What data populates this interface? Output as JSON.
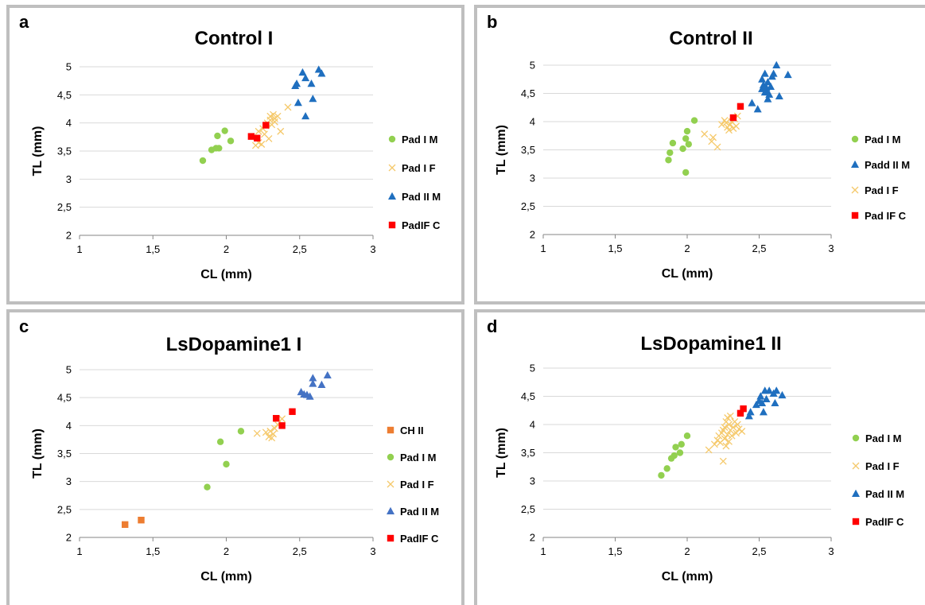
{
  "chart_data": [
    {
      "type": "scatter",
      "panel_label": "a",
      "title": "Control I",
      "xlabel": "CL (mm)",
      "ylabel": "TL (mm)",
      "xlim": [
        1,
        3
      ],
      "ylim": [
        2,
        5
      ],
      "xticks": [
        "1",
        "1,5",
        "2",
        "2,5",
        "3"
      ],
      "yticks": [
        "2",
        "2,5",
        "3",
        "3,5",
        "4",
        "4,5",
        "5"
      ],
      "grid": "horizontal",
      "legend": "right",
      "series": [
        {
          "name": "Pad I M",
          "marker": "circle",
          "color": "#92d050",
          "points": [
            [
              1.84,
              3.33
            ],
            [
              1.9,
              3.52
            ],
            [
              1.93,
              3.55
            ],
            [
              1.95,
              3.55
            ],
            [
              1.94,
              3.77
            ],
            [
              1.99,
              3.86
            ],
            [
              2.03,
              3.68
            ]
          ]
        },
        {
          "name": "Pad I F",
          "marker": "x",
          "color": "#f5c96b",
          "points": [
            [
              2.2,
              3.6
            ],
            [
              2.22,
              3.65
            ],
            [
              2.24,
              3.62
            ],
            [
              2.22,
              3.85
            ],
            [
              2.25,
              3.9
            ],
            [
              2.27,
              3.95
            ],
            [
              2.28,
              4.0
            ],
            [
              2.3,
              4.05
            ],
            [
              2.3,
              4.12
            ],
            [
              2.32,
              4.15
            ],
            [
              2.33,
              4.08
            ],
            [
              2.35,
              4.12
            ],
            [
              2.33,
              4.02
            ],
            [
              2.29,
              3.72
            ],
            [
              2.37,
              3.85
            ],
            [
              2.42,
              4.28
            ],
            [
              2.26,
              3.8
            ],
            [
              2.31,
              3.97
            ]
          ]
        },
        {
          "name": "Pad II M",
          "marker": "triangle",
          "color": "#1f6fbf",
          "points": [
            [
              2.47,
              4.66
            ],
            [
              2.48,
              4.7
            ],
            [
              2.49,
              4.36
            ],
            [
              2.52,
              4.9
            ],
            [
              2.54,
              4.8
            ],
            [
              2.54,
              4.12
            ],
            [
              2.58,
              4.7
            ],
            [
              2.59,
              4.43
            ],
            [
              2.63,
              4.95
            ],
            [
              2.65,
              4.88
            ]
          ]
        },
        {
          "name": "PadIF C",
          "marker": "square",
          "color": "#ff0000",
          "points": [
            [
              2.17,
              3.76
            ],
            [
              2.21,
              3.73
            ],
            [
              2.27,
              3.96
            ]
          ]
        }
      ]
    },
    {
      "type": "scatter",
      "panel_label": "b",
      "title": "Control II",
      "xlabel": "CL (mm)",
      "ylabel": "TL (mm)",
      "xlim": [
        1,
        3
      ],
      "ylim": [
        2,
        5
      ],
      "xticks": [
        "1",
        "1,5",
        "2",
        "2,5",
        "3"
      ],
      "yticks": [
        "2",
        "2,5",
        "3",
        "3,5",
        "4",
        "4,5",
        "5"
      ],
      "grid": "horizontal",
      "legend": "right",
      "series": [
        {
          "name": "Pad I M",
          "marker": "circle",
          "color": "#92d050",
          "points": [
            [
              1.87,
              3.32
            ],
            [
              1.88,
              3.45
            ],
            [
              1.9,
              3.62
            ],
            [
              1.97,
              3.52
            ],
            [
              1.99,
              3.7
            ],
            [
              2.0,
              3.83
            ],
            [
              2.01,
              3.6
            ],
            [
              2.05,
              4.02
            ],
            [
              1.99,
              3.1
            ]
          ]
        },
        {
          "name": "Padd II M",
          "marker": "triangle",
          "color": "#1f6fbf",
          "points": [
            [
              2.45,
              4.33
            ],
            [
              2.49,
              4.22
            ],
            [
              2.52,
              4.58
            ],
            [
              2.52,
              4.75
            ],
            [
              2.53,
              4.65
            ],
            [
              2.54,
              4.52
            ],
            [
              2.54,
              4.85
            ],
            [
              2.55,
              4.55
            ],
            [
              2.56,
              4.7
            ],
            [
              2.56,
              4.4
            ],
            [
              2.57,
              4.48
            ],
            [
              2.58,
              4.62
            ],
            [
              2.59,
              4.8
            ],
            [
              2.6,
              4.85
            ],
            [
              2.62,
              5.0
            ],
            [
              2.64,
              4.45
            ],
            [
              2.7,
              4.83
            ],
            [
              2.55,
              4.6
            ]
          ]
        },
        {
          "name": "Pad I F",
          "marker": "x",
          "color": "#f5c96b",
          "points": [
            [
              2.12,
              3.78
            ],
            [
              2.17,
              3.65
            ],
            [
              2.18,
              3.72
            ],
            [
              2.21,
              3.55
            ],
            [
              2.24,
              3.95
            ],
            [
              2.26,
              4.02
            ],
            [
              2.28,
              3.9
            ],
            [
              2.29,
              3.85
            ],
            [
              2.3,
              3.95
            ],
            [
              2.31,
              4.0
            ],
            [
              2.32,
              3.88
            ],
            [
              2.33,
              4.05
            ],
            [
              2.34,
              3.92
            ],
            [
              2.35,
              4.1
            ],
            [
              2.27,
              3.98
            ]
          ]
        },
        {
          "name": "Pad IF C",
          "marker": "square",
          "color": "#ff0000",
          "points": [
            [
              2.32,
              4.07
            ],
            [
              2.37,
              4.27
            ]
          ]
        }
      ]
    },
    {
      "type": "scatter",
      "panel_label": "c",
      "title": "LsDopamine1 I",
      "xlabel": "CL (mm)",
      "ylabel": "TL (mm)",
      "xlim": [
        1,
        3
      ],
      "ylim": [
        2,
        5
      ],
      "xticks": [
        "1",
        "1,5",
        "2",
        "2,5",
        "3"
      ],
      "yticks": [
        "2",
        "2,5",
        "3",
        "3,5",
        "4",
        "4,5",
        "5"
      ],
      "grid": "horizontal",
      "legend": "right",
      "series": [
        {
          "name": "CH II",
          "marker": "square",
          "color": "#ed7d31",
          "points": [
            [
              1.31,
              2.23
            ],
            [
              1.42,
              2.31
            ]
          ]
        },
        {
          "name": "Pad I M",
          "marker": "circle",
          "color": "#92d050",
          "points": [
            [
              1.87,
              2.9
            ],
            [
              1.96,
              3.71
            ],
            [
              2.0,
              3.31
            ],
            [
              2.1,
              3.9
            ]
          ]
        },
        {
          "name": "Pad I F",
          "marker": "x",
          "color": "#f5c96b",
          "points": [
            [
              2.21,
              3.86
            ],
            [
              2.27,
              3.88
            ],
            [
              2.29,
              3.8
            ],
            [
              2.31,
              3.78
            ],
            [
              2.3,
              3.9
            ],
            [
              2.33,
              3.95
            ],
            [
              2.35,
              4.02
            ],
            [
              2.38,
              4.12
            ],
            [
              2.32,
              3.85
            ]
          ]
        },
        {
          "name": "Pad II M",
          "marker": "triangle",
          "color": "#4472c4",
          "points": [
            [
              2.51,
              4.6
            ],
            [
              2.53,
              4.56
            ],
            [
              2.55,
              4.55
            ],
            [
              2.57,
              4.52
            ],
            [
              2.59,
              4.85
            ],
            [
              2.59,
              4.75
            ],
            [
              2.65,
              4.73
            ],
            [
              2.69,
              4.9
            ]
          ]
        },
        {
          "name": "PadIF C",
          "marker": "square",
          "color": "#ff0000",
          "points": [
            [
              2.34,
              4.13
            ],
            [
              2.38,
              4.0
            ],
            [
              2.45,
              4.25
            ]
          ]
        }
      ]
    },
    {
      "type": "scatter",
      "panel_label": "d",
      "title": "LsDopamine1 II",
      "xlabel": "CL (mm)",
      "ylabel": "TL (mm)",
      "xlim": [
        1,
        3
      ],
      "ylim": [
        2,
        5
      ],
      "xticks": [
        "1",
        "1,5",
        "2",
        "2,5",
        "3"
      ],
      "yticks": [
        "2",
        "2,5",
        "3",
        "3,5",
        "4",
        "4,5",
        "5"
      ],
      "grid": "horizontal",
      "legend": "right",
      "series": [
        {
          "name": "Pad I M",
          "marker": "circle",
          "color": "#92d050",
          "points": [
            [
              1.82,
              3.1
            ],
            [
              1.86,
              3.22
            ],
            [
              1.89,
              3.4
            ],
            [
              1.91,
              3.45
            ],
            [
              1.92,
              3.6
            ],
            [
              1.95,
              3.5
            ],
            [
              1.96,
              3.65
            ],
            [
              2.0,
              3.8
            ]
          ]
        },
        {
          "name": "Pad I F",
          "marker": "x",
          "color": "#f5c96b",
          "points": [
            [
              2.15,
              3.55
            ],
            [
              2.19,
              3.65
            ],
            [
              2.21,
              3.72
            ],
            [
              2.22,
              3.8
            ],
            [
              2.23,
              3.68
            ],
            [
              2.24,
              3.85
            ],
            [
              2.25,
              3.9
            ],
            [
              2.26,
              3.95
            ],
            [
              2.26,
              3.75
            ],
            [
              2.27,
              4.05
            ],
            [
              2.27,
              3.62
            ],
            [
              2.28,
              4.12
            ],
            [
              2.28,
              3.82
            ],
            [
              2.29,
              4.0
            ],
            [
              2.29,
              3.7
            ],
            [
              2.3,
              3.9
            ],
            [
              2.3,
              4.15
            ],
            [
              2.31,
              3.8
            ],
            [
              2.32,
              3.95
            ],
            [
              2.33,
              4.05
            ],
            [
              2.34,
              3.85
            ],
            [
              2.35,
              4.0
            ],
            [
              2.36,
              3.92
            ],
            [
              2.38,
              3.88
            ],
            [
              2.25,
              3.35
            ]
          ]
        },
        {
          "name": "Pad II M",
          "marker": "triangle",
          "color": "#1f6fbf",
          "points": [
            [
              2.43,
              4.15
            ],
            [
              2.44,
              4.22
            ],
            [
              2.48,
              4.35
            ],
            [
              2.5,
              4.42
            ],
            [
              2.52,
              4.38
            ],
            [
              2.53,
              4.22
            ],
            [
              2.54,
              4.6
            ],
            [
              2.55,
              4.45
            ],
            [
              2.57,
              4.6
            ],
            [
              2.6,
              4.55
            ],
            [
              2.61,
              4.38
            ],
            [
              2.62,
              4.6
            ],
            [
              2.66,
              4.52
            ],
            [
              2.51,
              4.5
            ]
          ]
        },
        {
          "name": "PadIF C",
          "marker": "square",
          "color": "#ff0000",
          "points": [
            [
              2.37,
              4.2
            ],
            [
              2.39,
              4.28
            ]
          ]
        }
      ]
    }
  ]
}
